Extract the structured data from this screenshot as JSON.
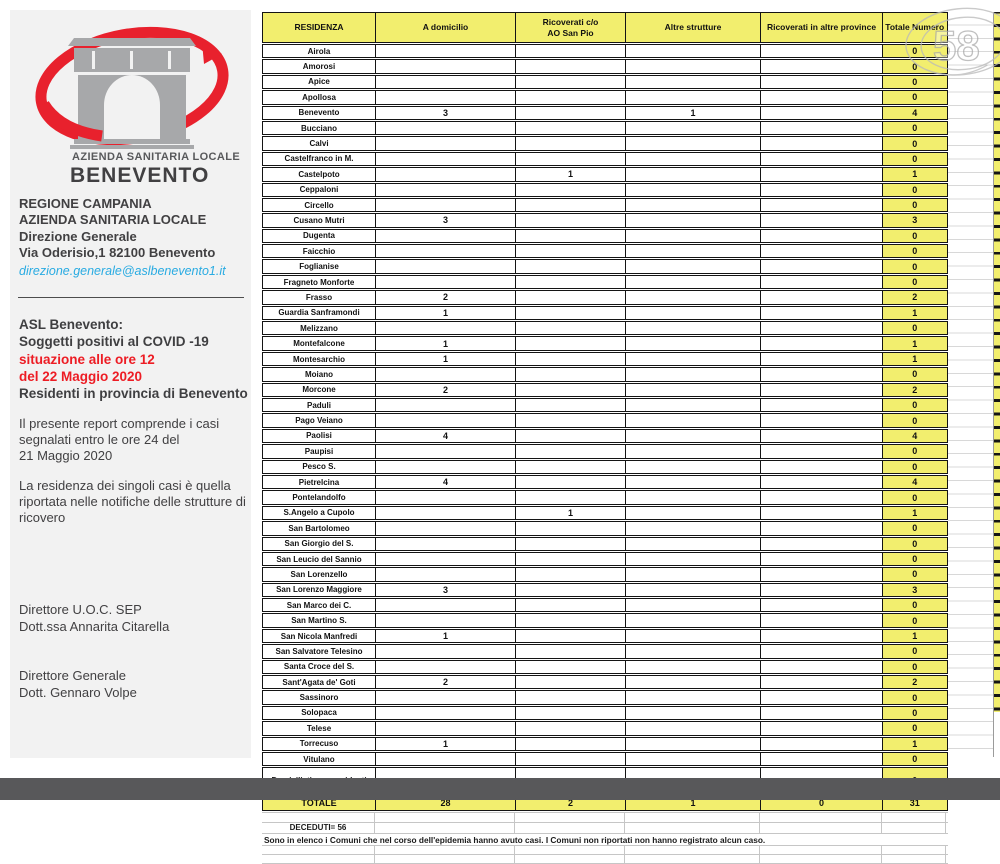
{
  "colors": {
    "accent_red": "#ed1c24",
    "cell_yellow": "#f2ee6e",
    "email_blue": "#29abe2",
    "footer_bar_gray": "#58585a",
    "logo_gray": "#a7a8aa"
  },
  "watermark": {
    "text": "58"
  },
  "logo": {
    "org_line": "AZIENDA SANITARIA LOCALE",
    "org_city": "BENEVENTO"
  },
  "left_panel": {
    "address": "REGIONE CAMPANIA\nAZIENDA SANITARIA LOCALE\nDirezione Generale\nVia Oderisio,1 82100 Benevento",
    "email": "direzione.generale@aslbenevento1.it",
    "title_black_1": "ASL Benevento:",
    "title_black_2": "Soggetti positivi al COVID -19",
    "title_red_1": "situazione alle ore 12",
    "title_red_2": "del 22 Maggio 2020",
    "title_black_3": "Residenti in provincia di Benevento",
    "para_1": "Il presente report comprende i casi\nsegnalati entro le ore 24 del\n21 Maggio 2020",
    "para_2": "La residenza dei singoli casi è quella\nriportata nelle notifiche delle strutture di\nricovero",
    "signature_1": "Direttore U.O.C. SEP\nDott.ssa Annarita Citarella",
    "signature_2": "Direttore Generale\nDott. Gennaro Volpe"
  },
  "table": {
    "columns": [
      "RESIDENZA",
      "A domicilio",
      "Ricoverati c/o\nAO San Pio",
      "Altre strutture",
      "Ricoverati in altre province",
      "Totale Numero"
    ],
    "rows": [
      [
        "Airola",
        "",
        "",
        "",
        "",
        "0"
      ],
      [
        "Amorosi",
        "",
        "",
        "",
        "",
        "0"
      ],
      [
        "Apice",
        "",
        "",
        "",
        "",
        "0"
      ],
      [
        "Apollosa",
        "",
        "",
        "",
        "",
        "0"
      ],
      [
        "Benevento",
        "3",
        "",
        "1",
        "",
        "4"
      ],
      [
        "Bucciano",
        "",
        "",
        "",
        "",
        "0"
      ],
      [
        "Calvi",
        "",
        "",
        "",
        "",
        "0"
      ],
      [
        "Castelfranco in M.",
        "",
        "",
        "",
        "",
        "0"
      ],
      [
        "Castelpoto",
        "",
        "1",
        "",
        "",
        "1"
      ],
      [
        "Ceppaloni",
        "",
        "",
        "",
        "",
        "0"
      ],
      [
        "Circello",
        "",
        "",
        "",
        "",
        "0"
      ],
      [
        "Cusano Mutri",
        "3",
        "",
        "",
        "",
        "3"
      ],
      [
        "Dugenta",
        "",
        "",
        "",
        "",
        "0"
      ],
      [
        "Faicchio",
        "",
        "",
        "",
        "",
        "0"
      ],
      [
        "Foglianise",
        "",
        "",
        "",
        "",
        "0"
      ],
      [
        "Fragneto Monforte",
        "",
        "",
        "",
        "",
        "0"
      ],
      [
        "Frasso",
        "2",
        "",
        "",
        "",
        "2"
      ],
      [
        "Guardia Sanframondi",
        "1",
        "",
        "",
        "",
        "1"
      ],
      [
        "Melizzano",
        "",
        "",
        "",
        "",
        "0"
      ],
      [
        "Montefalcone",
        "1",
        "",
        "",
        "",
        "1"
      ],
      [
        "Montesarchio",
        "1",
        "",
        "",
        "",
        "1"
      ],
      [
        "Moiano",
        "",
        "",
        "",
        "",
        "0"
      ],
      [
        "Morcone",
        "2",
        "",
        "",
        "",
        "2"
      ],
      [
        "Paduli",
        "",
        "",
        "",
        "",
        "0"
      ],
      [
        "Pago Veiano",
        "",
        "",
        "",
        "",
        "0"
      ],
      [
        "Paolisi",
        "4",
        "",
        "",
        "",
        "4"
      ],
      [
        "Paupisi",
        "",
        "",
        "",
        "",
        "0"
      ],
      [
        "Pesco S.",
        "",
        "",
        "",
        "",
        "0"
      ],
      [
        "Pietrelcina",
        "4",
        "",
        "",
        "",
        "4"
      ],
      [
        "Pontelandolfo",
        "",
        "",
        "",
        "",
        "0"
      ],
      [
        "S.Angelo a Cupolo",
        "",
        "1",
        "",
        "",
        "1"
      ],
      [
        "San Bartolomeo",
        "",
        "",
        "",
        "",
        "0"
      ],
      [
        "San Giorgio del S.",
        "",
        "",
        "",
        "",
        "0"
      ],
      [
        "San Leucio del Sannio",
        "",
        "",
        "",
        "",
        "0"
      ],
      [
        "San Lorenzello",
        "",
        "",
        "",
        "",
        "0"
      ],
      [
        "San Lorenzo Maggiore",
        "3",
        "",
        "",
        "",
        "3"
      ],
      [
        "San Marco dei C.",
        "",
        "",
        "",
        "",
        "0"
      ],
      [
        "San Martino S.",
        "",
        "",
        "",
        "",
        "0"
      ],
      [
        "San Nicola Manfredi",
        "1",
        "",
        "",
        "",
        "1"
      ],
      [
        "San Salvatore Telesino",
        "",
        "",
        "",
        "",
        "0"
      ],
      [
        "Santa Croce del S.",
        "",
        "",
        "",
        "",
        "0"
      ],
      [
        "Sant'Agata de' Goti",
        "2",
        "",
        "",
        "",
        "2"
      ],
      [
        "Sassinoro",
        "",
        "",
        "",
        "",
        "0"
      ],
      [
        "Solopaca",
        "",
        "",
        "",
        "",
        "0"
      ],
      [
        "Telese",
        "",
        "",
        "",
        "",
        "0"
      ],
      [
        "Torrecuso",
        "1",
        "",
        "",
        "",
        "1"
      ],
      [
        "Vitulano",
        "",
        "",
        "",
        "",
        "0"
      ]
    ],
    "special_row": [
      "Domiciliati, non residenti",
      "",
      "",
      "",
      "",
      "0"
    ],
    "total_row": [
      "TOTALE",
      "28",
      "2",
      "1",
      "0",
      "31"
    ],
    "deceduti_label": "DECEDUTI= 56",
    "note": "Sono in elenco i Comuni che nel corso dell'epidemia hanno avuto casi. I Comuni non riportati non hanno registrato alcun caso."
  }
}
